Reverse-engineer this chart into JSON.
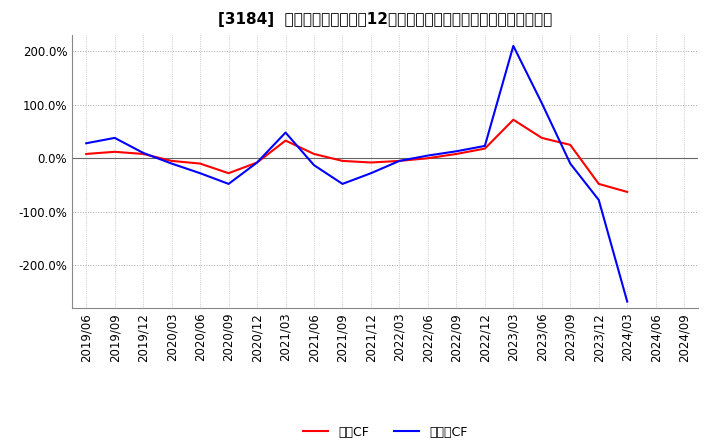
{
  "title": "[3184]  キャッシュフローの12か月移動合計の対前年同期増減率の推移",
  "ylim": [
    -280,
    230
  ],
  "yticks": [
    -200,
    -100,
    0,
    100,
    200
  ],
  "ytick_labels": [
    "-200.0%",
    "-100.0%",
    "0.0%",
    "100.0%",
    "200.0%"
  ],
  "legend_labels": [
    "営業CF",
    "フリーCF"
  ],
  "line_colors": [
    "#ff0000",
    "#0000ff"
  ],
  "x_labels": [
    "2019/06",
    "2019/09",
    "2019/12",
    "2020/03",
    "2020/06",
    "2020/09",
    "2020/12",
    "2021/03",
    "2021/06",
    "2021/09",
    "2021/12",
    "2022/03",
    "2022/06",
    "2022/09",
    "2022/12",
    "2023/03",
    "2023/06",
    "2023/09",
    "2023/12",
    "2024/03",
    "2024/06",
    "2024/09"
  ],
  "operating_cf": [
    8,
    12,
    8,
    -5,
    -10,
    -28,
    -8,
    33,
    8,
    -5,
    -8,
    -5,
    0,
    8,
    18,
    72,
    38,
    25,
    -48,
    -63,
    null,
    null
  ],
  "free_cf": [
    28,
    38,
    10,
    -10,
    -28,
    -48,
    -8,
    48,
    -13,
    -48,
    -28,
    -5,
    5,
    13,
    23,
    210,
    103,
    -10,
    -78,
    -268,
    null,
    null
  ],
  "background_color": "#ffffff",
  "grid_color": "#aaaaaa",
  "zero_line_color": "#666666",
  "title_fontsize": 11,
  "tick_fontsize": 8.5,
  "legend_fontsize": 9
}
